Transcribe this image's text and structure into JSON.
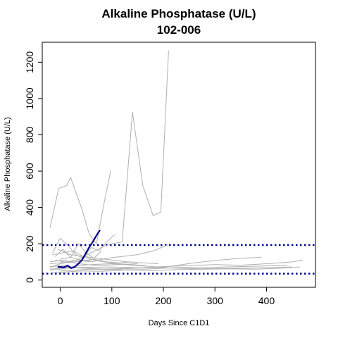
{
  "chart_data": {
    "type": "line",
    "title": "Alkaline Phosphatase (U/L)",
    "subtitle": "102-006",
    "xlabel": "Days Since C1D1",
    "ylabel": "Alkaline Phosphatase (U/L)",
    "xlim": [
      -35,
      495
    ],
    "ylim": [
      -40,
      1310
    ],
    "x_ticks": [
      0,
      100,
      200,
      300,
      400
    ],
    "y_ticks": [
      0,
      200,
      400,
      600,
      800,
      1000,
      1200
    ],
    "grid": false,
    "legend": "none",
    "reference_lines": [
      {
        "y": 193,
        "color": "#00008b",
        "style": "dotted"
      },
      {
        "y": 35,
        "color": "#00008b",
        "style": "dotted"
      }
    ],
    "highlight_series": {
      "color": "#00008b",
      "x": [
        -5,
        0,
        7,
        14,
        21,
        28,
        35,
        42,
        49,
        56,
        63,
        70,
        77
      ],
      "y": [
        72,
        72,
        70,
        80,
        65,
        72,
        90,
        110,
        145,
        180,
        210,
        245,
        275
      ]
    },
    "reference_series": [
      {
        "color": "#b0b0b0",
        "x": [
          -20,
          -3,
          12,
          20,
          42,
          56,
          70,
          84,
          98
        ],
        "y": [
          290,
          505,
          520,
          565,
          390,
          255,
          200,
          410,
          605
        ]
      },
      {
        "color": "#b0b0b0",
        "x": [
          -20,
          0,
          20,
          40,
          60,
          80,
          100,
          120,
          140,
          160,
          180,
          195,
          210
        ],
        "y": [
          70,
          90,
          100,
          120,
          150,
          180,
          200,
          210,
          925,
          520,
          355,
          375,
          1265
        ]
      },
      {
        "color": "#b0b0b0",
        "x": [
          -15,
          0,
          15,
          30,
          45,
          60,
          75,
          90,
          105
        ],
        "y": [
          150,
          230,
          190,
          140,
          120,
          180,
          160,
          210,
          250
        ]
      },
      {
        "color": "#b0b0b0",
        "x": [
          -10,
          5,
          20,
          35,
          50,
          65,
          80
        ],
        "y": [
          130,
          170,
          125,
          200,
          150,
          120,
          160
        ]
      },
      {
        "color": "#b0b0b0",
        "x": [
          -20,
          0,
          30,
          60,
          90,
          120,
          150,
          180,
          210
        ],
        "y": [
          90,
          95,
          110,
          100,
          120,
          130,
          140,
          160,
          195
        ]
      },
      {
        "color": "#b0b0b0",
        "x": [
          -20,
          0,
          50,
          100,
          150,
          200,
          250,
          300,
          350,
          400,
          450,
          470
        ],
        "y": [
          60,
          65,
          70,
          72,
          68,
          74,
          80,
          85,
          82,
          90,
          100,
          110
        ]
      },
      {
        "color": "#b0b0b0",
        "x": [
          -15,
          10,
          40,
          80,
          130,
          180,
          230,
          280,
          330,
          380,
          430,
          465
        ],
        "y": [
          40,
          45,
          50,
          48,
          55,
          52,
          58,
          60,
          62,
          60,
          65,
          72
        ]
      },
      {
        "color": "#b0b0b0",
        "x": [
          -10,
          20,
          60,
          100,
          150,
          200,
          260,
          310,
          350,
          390
        ],
        "y": [
          80,
          75,
          85,
          90,
          80,
          70,
          95,
          110,
          120,
          125
        ]
      },
      {
        "color": "#b0b0b0",
        "x": [
          -20,
          5,
          35,
          70,
          110,
          150
        ],
        "y": [
          100,
          110,
          90,
          80,
          85,
          90
        ]
      },
      {
        "color": "#b0b0b0",
        "x": [
          -5,
          20,
          45,
          70,
          100,
          130,
          160,
          190
        ],
        "y": [
          170,
          140,
          130,
          120,
          110,
          100,
          95,
          90
        ]
      },
      {
        "color": "#b0b0b0",
        "x": [
          -20,
          0,
          25,
          55,
          85,
          120
        ],
        "y": [
          55,
          60,
          70,
          65,
          60,
          58
        ]
      },
      {
        "color": "#b0b0b0",
        "x": [
          0,
          30,
          60,
          90,
          120,
          160,
          200,
          240,
          280,
          320,
          360,
          400,
          440
        ],
        "y": [
          50,
          55,
          60,
          58,
          62,
          60,
          65,
          70,
          68,
          72,
          75,
          78,
          80
        ]
      },
      {
        "color": "#b0b0b0",
        "x": [
          -10,
          15,
          40,
          65,
          90,
          115,
          140
        ],
        "y": [
          110,
          95,
          105,
          115,
          100,
          95,
          100
        ]
      },
      {
        "color": "#b0b0b0",
        "x": [
          -20,
          10,
          45,
          80,
          120,
          170,
          220,
          270,
          320,
          370,
          420,
          450
        ],
        "y": [
          75,
          70,
          65,
          60,
          64,
          70,
          66,
          62,
          64,
          66,
          70,
          72
        ]
      },
      {
        "color": "#b0b0b0",
        "x": [
          -15,
          5,
          25,
          45,
          65,
          85,
          110,
          135,
          165
        ],
        "y": [
          140,
          150,
          160,
          130,
          110,
          100,
          90,
          85,
          80
        ]
      },
      {
        "color": "#b0b0b0",
        "x": [
          0,
          20,
          40,
          60
        ],
        "y": [
          115,
          125,
          110,
          105
        ]
      }
    ]
  }
}
